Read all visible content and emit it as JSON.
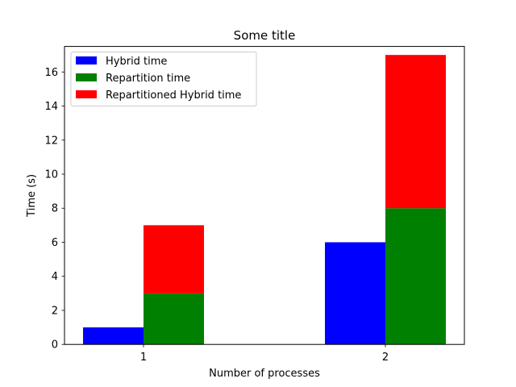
{
  "chart_data": {
    "type": "bar",
    "title": "Some title",
    "xlabel": "Number of processes",
    "ylabel": "Time (s)",
    "categories": [
      "1",
      "2"
    ],
    "ylim": [
      0,
      17.5
    ],
    "yticks": [
      0,
      2,
      4,
      6,
      8,
      10,
      12,
      14,
      16
    ],
    "grid": false,
    "legend_position": "top-left",
    "series": [
      {
        "name": "Hybrid time",
        "color": "#0000ff",
        "values": [
          1,
          6
        ],
        "group": "left",
        "stack_base": null
      },
      {
        "name": "Repartition time",
        "color": "#008000",
        "values": [
          3,
          8
        ],
        "group": "right",
        "stack_base": null
      },
      {
        "name": "Repartitioned Hybrid time",
        "color": "#ff0000",
        "values": [
          4,
          9
        ],
        "group": "right",
        "stack_base": "Repartition time"
      }
    ]
  }
}
